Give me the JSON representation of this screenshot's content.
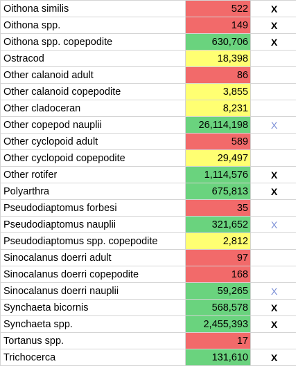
{
  "colors": {
    "red": "#f26a6a",
    "yellow": "#ffff72",
    "green": "#6ad37e",
    "mark_black": "#000000",
    "mark_blue": "#7b8fd6"
  },
  "rows": [
    {
      "name": "Oithona similis",
      "value": "522",
      "color": "red",
      "mark": "X",
      "mark_style": "black"
    },
    {
      "name": "Oithona spp.",
      "value": "149",
      "color": "red",
      "mark": "X",
      "mark_style": "black"
    },
    {
      "name": "Oithona spp. copepodite",
      "value": "630,706",
      "color": "green",
      "mark": "X",
      "mark_style": "black"
    },
    {
      "name": "Ostracod",
      "value": "18,398",
      "color": "yellow",
      "mark": "",
      "mark_style": "black"
    },
    {
      "name": "Other calanoid adult",
      "value": "86",
      "color": "red",
      "mark": "",
      "mark_style": "black"
    },
    {
      "name": "Other calanoid copepodite",
      "value": "3,855",
      "color": "yellow",
      "mark": "",
      "mark_style": "black"
    },
    {
      "name": "Other cladoceran",
      "value": "8,231",
      "color": "yellow",
      "mark": "",
      "mark_style": "black"
    },
    {
      "name": "Other copepod nauplii",
      "value": "26,114,198",
      "color": "green",
      "mark": "X",
      "mark_style": "blue"
    },
    {
      "name": "Other cyclopoid adult",
      "value": "589",
      "color": "red",
      "mark": "",
      "mark_style": "black"
    },
    {
      "name": "Other cyclopoid copepodite",
      "value": "29,497",
      "color": "yellow",
      "mark": "",
      "mark_style": "black"
    },
    {
      "name": "Other rotifer",
      "value": "1,114,576",
      "color": "green",
      "mark": "X",
      "mark_style": "black"
    },
    {
      "name": "Polyarthra",
      "value": "675,813",
      "color": "green",
      "mark": "X",
      "mark_style": "black"
    },
    {
      "name": "Pseudodiaptomus forbesi",
      "value": "35",
      "color": "red",
      "mark": "",
      "mark_style": "black"
    },
    {
      "name": "Pseudodiaptomus nauplii",
      "value": "321,652",
      "color": "green",
      "mark": "X",
      "mark_style": "blue"
    },
    {
      "name": "Pseudodiaptomus spp. copepodite",
      "value": "2,812",
      "color": "yellow",
      "mark": "",
      "mark_style": "black"
    },
    {
      "name": "Sinocalanus doerri adult",
      "value": "97",
      "color": "red",
      "mark": "",
      "mark_style": "black"
    },
    {
      "name": "Sinocalanus doerri copepodite",
      "value": "168",
      "color": "red",
      "mark": "",
      "mark_style": "black"
    },
    {
      "name": "Sinocalanus doerri nauplii",
      "value": "59,265",
      "color": "green",
      "mark": "X",
      "mark_style": "blue"
    },
    {
      "name": "Synchaeta bicornis",
      "value": "568,578",
      "color": "green",
      "mark": "X",
      "mark_style": "black"
    },
    {
      "name": "Synchaeta spp.",
      "value": "2,455,393",
      "color": "green",
      "mark": "X",
      "mark_style": "black"
    },
    {
      "name": "Tortanus spp.",
      "value": "17",
      "color": "red",
      "mark": "",
      "mark_style": "black"
    },
    {
      "name": "Trichocerca",
      "value": "131,610",
      "color": "green",
      "mark": "X",
      "mark_style": "black"
    }
  ]
}
